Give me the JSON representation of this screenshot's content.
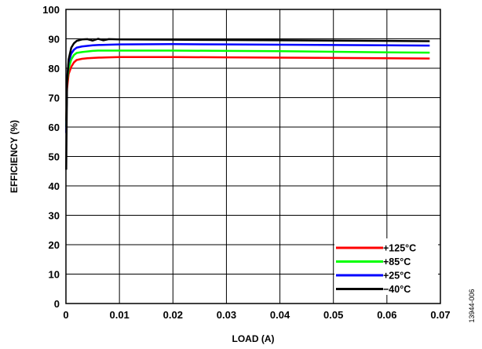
{
  "chart_data": {
    "type": "line",
    "title": "",
    "xlabel": "LOAD (A)",
    "ylabel": "EFFICIENCY (%)",
    "xlim": [
      0,
      0.07
    ],
    "ylim": [
      0,
      100
    ],
    "x_ticks": [
      0,
      0.01,
      0.02,
      0.03,
      0.04,
      0.05,
      0.06,
      0.07
    ],
    "x_tick_labels": [
      "0",
      "0.01",
      "0.02",
      "0.03",
      "0.04",
      "0.05",
      "0.06",
      "0.07"
    ],
    "y_ticks": [
      0,
      10,
      20,
      30,
      40,
      50,
      60,
      70,
      80,
      90,
      100
    ],
    "y_tick_labels": [
      "0",
      "10",
      "20",
      "30",
      "40",
      "50",
      "60",
      "70",
      "80",
      "90",
      "100"
    ],
    "grid": true,
    "legend_position": "bottom-right",
    "series": [
      {
        "name": "+125°C",
        "color": "#ff0000",
        "x": [
          5e-05,
          0.0002,
          0.0005,
          0.001,
          0.0015,
          0.002,
          0.003,
          0.004,
          0.005,
          0.006,
          0.008,
          0.01,
          0.02,
          0.03,
          0.04,
          0.05,
          0.06,
          0.068
        ],
        "y": [
          62,
          73,
          78,
          80.5,
          82,
          82.8,
          83.2,
          83.4,
          83.5,
          83.6,
          83.7,
          83.8,
          83.8,
          83.7,
          83.6,
          83.5,
          83.4,
          83.3
        ]
      },
      {
        "name": "+85°C",
        "color": "#00ff00",
        "x": [
          5e-05,
          0.0002,
          0.0005,
          0.001,
          0.0015,
          0.002,
          0.003,
          0.004,
          0.005,
          0.006,
          0.008,
          0.01,
          0.02,
          0.03,
          0.04,
          0.05,
          0.06,
          0.068
        ],
        "y": [
          60,
          75,
          80,
          83,
          84.5,
          85.2,
          85.5,
          85.7,
          85.9,
          86,
          86,
          86,
          86,
          85.9,
          85.8,
          85.6,
          85.4,
          85.3
        ]
      },
      {
        "name": "+25°C",
        "color": "#0000ff",
        "x": [
          5e-05,
          0.0002,
          0.0005,
          0.001,
          0.0015,
          0.002,
          0.003,
          0.004,
          0.005,
          0.006,
          0.008,
          0.01,
          0.02,
          0.03,
          0.04,
          0.05,
          0.06,
          0.068
        ],
        "y": [
          58,
          76,
          82,
          85,
          86.3,
          87,
          87.4,
          87.6,
          87.8,
          87.9,
          88,
          88.1,
          88.2,
          88.1,
          88,
          87.9,
          87.8,
          87.7
        ]
      },
      {
        "name": "−40°C",
        "color": "#000000",
        "x": [
          5e-05,
          0.0002,
          0.0005,
          0.001,
          0.0015,
          0.002,
          0.003,
          0.004,
          0.005,
          0.006,
          0.007,
          0.008,
          0.01,
          0.02,
          0.03,
          0.04,
          0.05,
          0.06,
          0.068
        ],
        "y": [
          45.5,
          75,
          83,
          87,
          88.5,
          89.3,
          89.8,
          89.9,
          89.4,
          90,
          89.5,
          89.9,
          89.8,
          89.7,
          89.6,
          89.5,
          89.4,
          89.3,
          89.2
        ]
      }
    ],
    "figure_id": "13944-006"
  }
}
